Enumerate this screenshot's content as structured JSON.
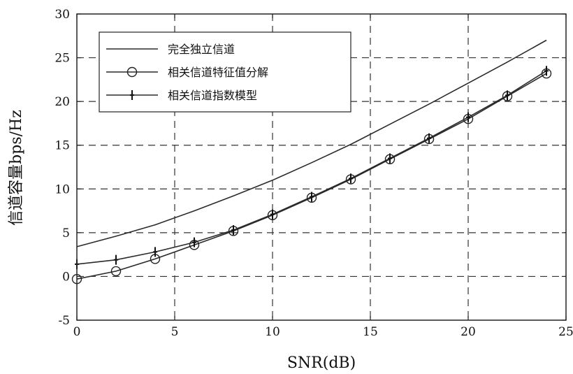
{
  "chart_data": {
    "type": "line",
    "title": "",
    "xlabel": "SNR(dB)",
    "ylabel": "信道容量bps/Hz",
    "xlim": [
      0,
      25
    ],
    "ylim": [
      -5,
      30
    ],
    "xticks": [
      0,
      5,
      10,
      15,
      20,
      25
    ],
    "yticks": [
      -5,
      0,
      5,
      10,
      15,
      20,
      25,
      30
    ],
    "xtick_labels": [
      "0",
      "5",
      "10",
      "15",
      "20",
      "25"
    ],
    "ytick_labels": [
      "-5",
      "0",
      "5",
      "10",
      "15",
      "20",
      "25",
      "30"
    ],
    "grid": "dashed",
    "legend_position": "top-left",
    "series": [
      {
        "name": "完全独立信道",
        "marker": "none",
        "x": [
          0,
          2,
          4,
          6,
          8,
          10,
          12,
          14,
          16,
          18,
          20,
          22,
          24
        ],
        "y": [
          3.4,
          4.6,
          5.9,
          7.5,
          9.2,
          11.0,
          13.0,
          15.1,
          17.4,
          19.7,
          22.1,
          24.5,
          27.0
        ]
      },
      {
        "name": "相关信道特征值分解",
        "marker": "circle",
        "x": [
          0,
          2,
          4,
          6,
          8,
          10,
          12,
          14,
          16,
          18,
          20,
          22,
          24
        ],
        "y": [
          -0.3,
          0.6,
          2.0,
          3.6,
          5.2,
          7.0,
          9.0,
          11.1,
          13.4,
          15.7,
          18.0,
          20.6,
          23.2
        ]
      },
      {
        "name": "相关信道指数模型",
        "marker": "plus",
        "x": [
          0,
          2,
          4,
          6,
          8,
          10,
          12,
          14,
          16,
          18,
          20,
          22,
          24
        ],
        "y": [
          1.4,
          1.9,
          2.8,
          3.9,
          5.3,
          7.1,
          9.1,
          11.2,
          13.5,
          15.8,
          18.2,
          20.7,
          23.5
        ]
      }
    ]
  }
}
